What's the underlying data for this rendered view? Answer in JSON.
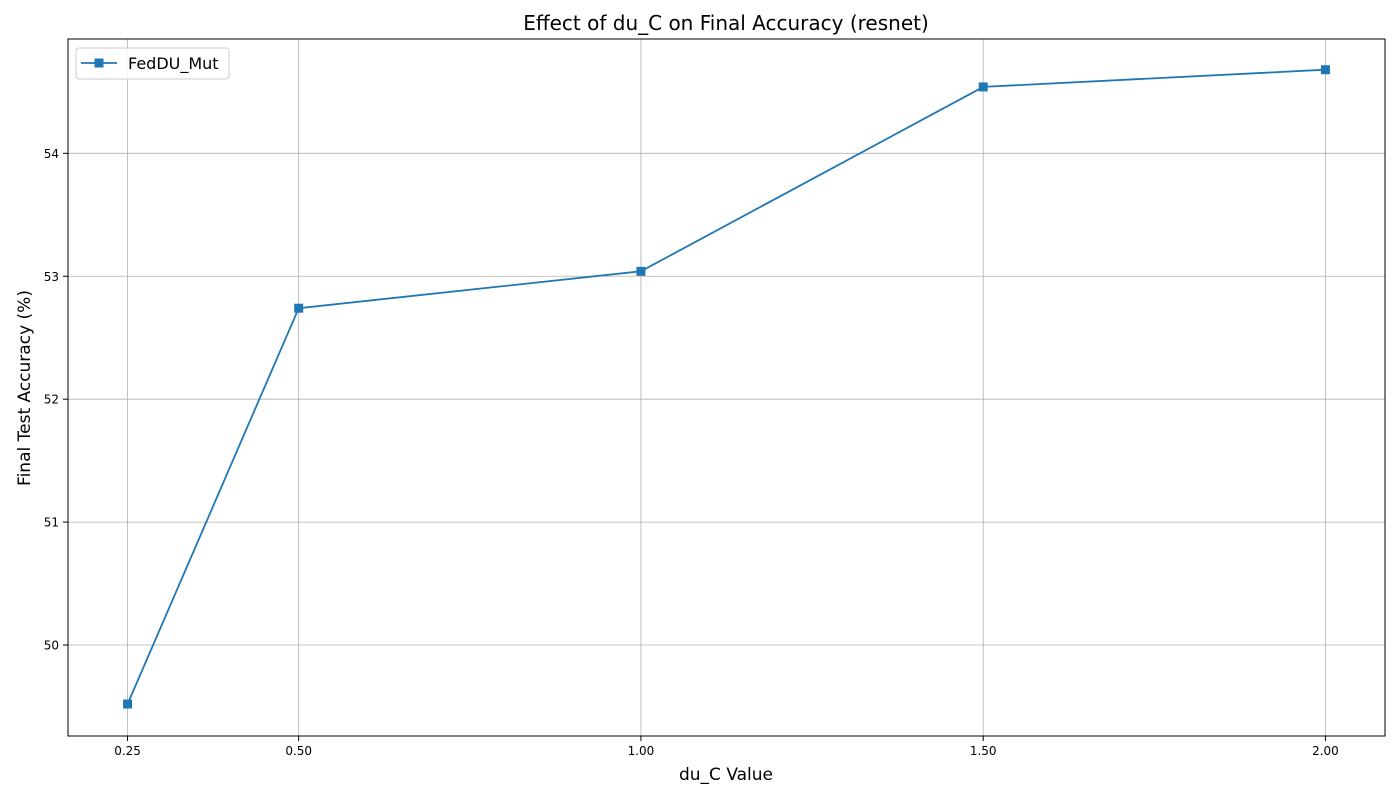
{
  "chart_data": {
    "type": "line",
    "title": "Effect of du_C on Final Accuracy (resnet)",
    "xlabel": "du_C Value",
    "ylabel": "Final Test Accuracy (%)",
    "x": [
      0.25,
      0.5,
      1.0,
      1.5,
      2.0
    ],
    "x_tick_values": [
      0.25,
      0.5,
      1.0,
      1.5,
      2.0
    ],
    "x_tick_labels": [
      "0.25",
      "0.50",
      "1.00",
      "1.50",
      "2.00"
    ],
    "y_tick_values": [
      50,
      51,
      52,
      53,
      54
    ],
    "y_tick_labels": [
      "50",
      "51",
      "52",
      "53",
      "54"
    ],
    "xlim": [
      0.163,
      2.087
    ],
    "ylim": [
      49.26,
      54.93
    ],
    "grid": true,
    "legend_position": "upper-left",
    "series": [
      {
        "name": "FedDU_Mut",
        "values": [
          49.52,
          52.74,
          53.04,
          54.54,
          54.68
        ],
        "color": "#1f77b4",
        "marker": "square"
      }
    ]
  }
}
